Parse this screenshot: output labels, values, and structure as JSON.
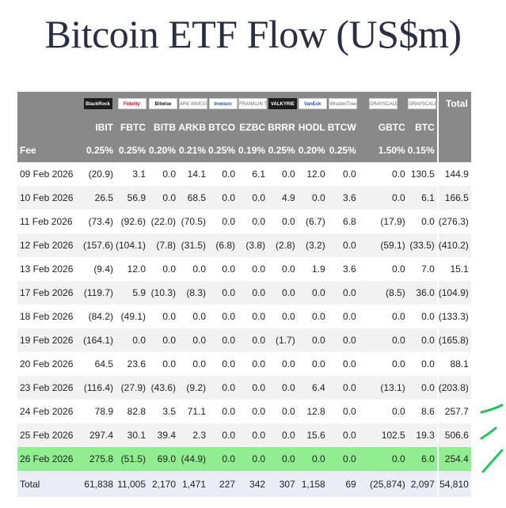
{
  "title": "Bitcoin ETF Flow (US$m)",
  "logos": [
    "BlackRock",
    "Fidelity",
    "Bitwise",
    "ARK INVEST",
    "Invesco",
    "FRANKLIN TEMPLETON",
    "VALKYRIE",
    "VanEck",
    "WisdomTree",
    "GRAYSCALE",
    "GRAYSCALE"
  ],
  "header": {
    "total": "Total",
    "fee_label": "Fee"
  },
  "tickers": [
    "IBIT",
    "FBTC",
    "BITB",
    "ARKB",
    "BTCO",
    "EZBC",
    "BRRR",
    "HODL",
    "BTCW",
    "GBTC",
    "BTC"
  ],
  "fees": [
    "0.25%",
    "0.25%",
    "0.20%",
    "0.21%",
    "0.25%",
    "0.19%",
    "0.25%",
    "0.20%",
    "0.25%",
    "1.50%",
    "0.15%"
  ],
  "rows": [
    {
      "date": "09 Feb 2026",
      "cells": [
        "(20.9)",
        "3.1",
        "0.0",
        "14.1",
        "0.0",
        "6.1",
        "0.0",
        "12.0",
        "0.0",
        "0.0",
        "130.5",
        "144.9"
      ]
    },
    {
      "date": "10 Feb 2026",
      "cells": [
        "26.5",
        "56.9",
        "0.0",
        "68.5",
        "0.0",
        "0.0",
        "4.9",
        "0.0",
        "3.6",
        "0.0",
        "6.1",
        "166.5"
      ]
    },
    {
      "date": "11 Feb 2026",
      "cells": [
        "(73.4)",
        "(92.6)",
        "(22.0)",
        "(70.5)",
        "0.0",
        "0.0",
        "0.0",
        "(6.7)",
        "6.8",
        "(17.9)",
        "0.0",
        "(276.3)"
      ]
    },
    {
      "date": "12 Feb 2026",
      "cells": [
        "(157.6)",
        "(104.1)",
        "(7.8)",
        "(31.5)",
        "(6.8)",
        "(3.8)",
        "(2.8)",
        "(3.2)",
        "0.0",
        "(59.1)",
        "(33.5)",
        "(410.2)"
      ]
    },
    {
      "date": "13 Feb 2026",
      "cells": [
        "(9.4)",
        "12.0",
        "0.0",
        "0.0",
        "0.0",
        "0.0",
        "0.0",
        "1.9",
        "3.6",
        "0.0",
        "7.0",
        "15.1"
      ]
    },
    {
      "date": "17 Feb 2026",
      "cells": [
        "(119.7)",
        "5.9",
        "(10.3)",
        "(8.3)",
        "0.0",
        "0.0",
        "0.0",
        "0.0",
        "0.0",
        "(8.5)",
        "36.0",
        "(104.9)"
      ]
    },
    {
      "date": "18 Feb 2026",
      "cells": [
        "(84.2)",
        "(49.1)",
        "0.0",
        "0.0",
        "0.0",
        "0.0",
        "0.0",
        "0.0",
        "0.0",
        "0.0",
        "0.0",
        "(133.3)"
      ]
    },
    {
      "date": "19 Feb 2026",
      "cells": [
        "(164.1)",
        "0.0",
        "0.0",
        "0.0",
        "0.0",
        "0.0",
        "(1.7)",
        "0.0",
        "0.0",
        "0.0",
        "0.0",
        "(165.8)"
      ]
    },
    {
      "date": "20 Feb 2026",
      "cells": [
        "64.5",
        "23.6",
        "0.0",
        "0.0",
        "0.0",
        "0.0",
        "0.0",
        "0.0",
        "0.0",
        "0.0",
        "0.0",
        "88.1"
      ]
    },
    {
      "date": "23 Feb 2026",
      "cells": [
        "(116.4)",
        "(27.9)",
        "(43.6)",
        "(9.2)",
        "0.0",
        "0.0",
        "0.0",
        "6.4",
        "0.0",
        "(13.1)",
        "0.0",
        "(203.8)"
      ]
    },
    {
      "date": "24 Feb 2026",
      "cells": [
        "78.9",
        "82.8",
        "3.5",
        "71.1",
        "0.0",
        "0.0",
        "0.0",
        "12.8",
        "0.0",
        "0.0",
        "8.6",
        "257.7"
      ]
    },
    {
      "date": "25 Feb 2026",
      "cells": [
        "297.4",
        "30.1",
        "39.4",
        "2.3",
        "0.0",
        "0.0",
        "0.0",
        "15.6",
        "0.0",
        "102.5",
        "19.3",
        "506.6"
      ]
    },
    {
      "date": "26 Feb 2026",
      "cells": [
        "275.8",
        "(51.5)",
        "69.0",
        "(44.9)",
        "0.0",
        "0.0",
        "0.0",
        "0.0",
        "0.0",
        "0.0",
        "6.0",
        "254.4"
      ],
      "highlight": true
    }
  ],
  "totals": {
    "label": "Total",
    "cells": [
      "61,838",
      "11,005",
      "2,170",
      "1,471",
      "227",
      "342",
      "307",
      "1,158",
      "69",
      "(25,874)",
      "2,097",
      "54,810"
    ]
  },
  "colors": {
    "header_bg": "#898989",
    "negative": "#d60000",
    "highlight": "#90ee90",
    "annotation": "#22c55e",
    "title": "#2b2d42"
  }
}
